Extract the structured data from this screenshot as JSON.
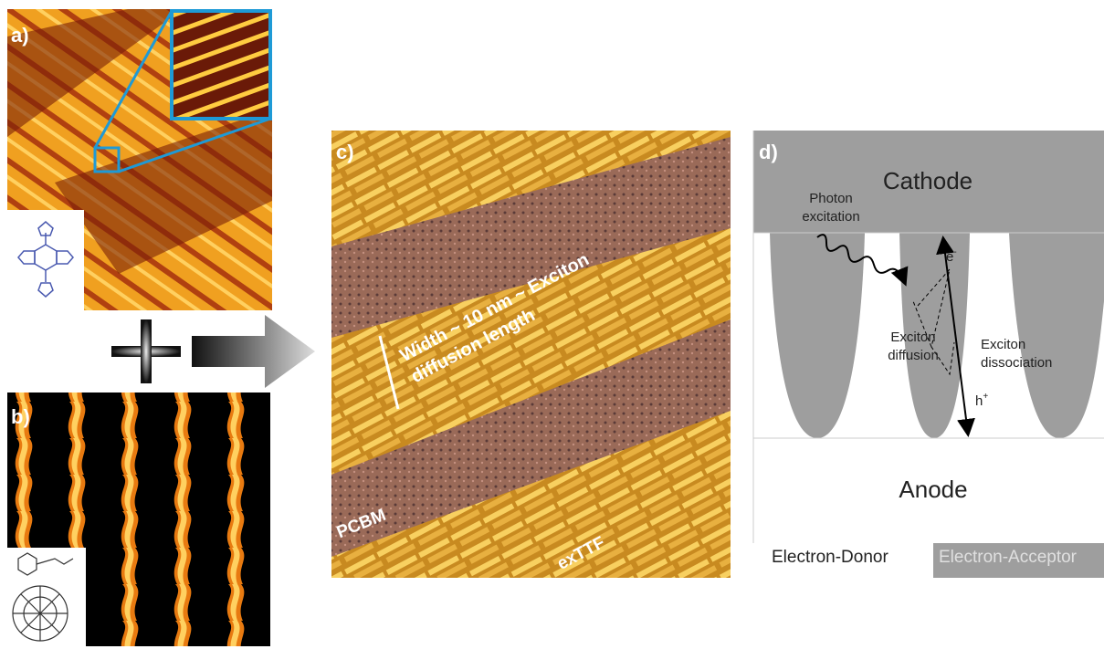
{
  "panels": {
    "a": {
      "label": "a)"
    },
    "b": {
      "label": "b)"
    },
    "c": {
      "label": "c)",
      "annotation_line1": "Width ~ 10 nm ~ Exciton",
      "annotation_line2": "diffusion length",
      "left_label": "PCBM",
      "right_label": "exTTF"
    },
    "d": {
      "label": "d)",
      "cathode": "Cathode",
      "photon_line1": "Photon",
      "photon_line2": "excitation",
      "electron": "e",
      "electron_sign": "-",
      "diffusion_line1": "Exciton",
      "diffusion_line2": "diffusion",
      "dissociation_line1": "Exciton",
      "dissociation_line2": "dissociation",
      "hole": "h",
      "hole_sign": "+",
      "anode": "Anode",
      "donor": "Electron-Donor",
      "acceptor": "Electron-Acceptor"
    }
  }
}
